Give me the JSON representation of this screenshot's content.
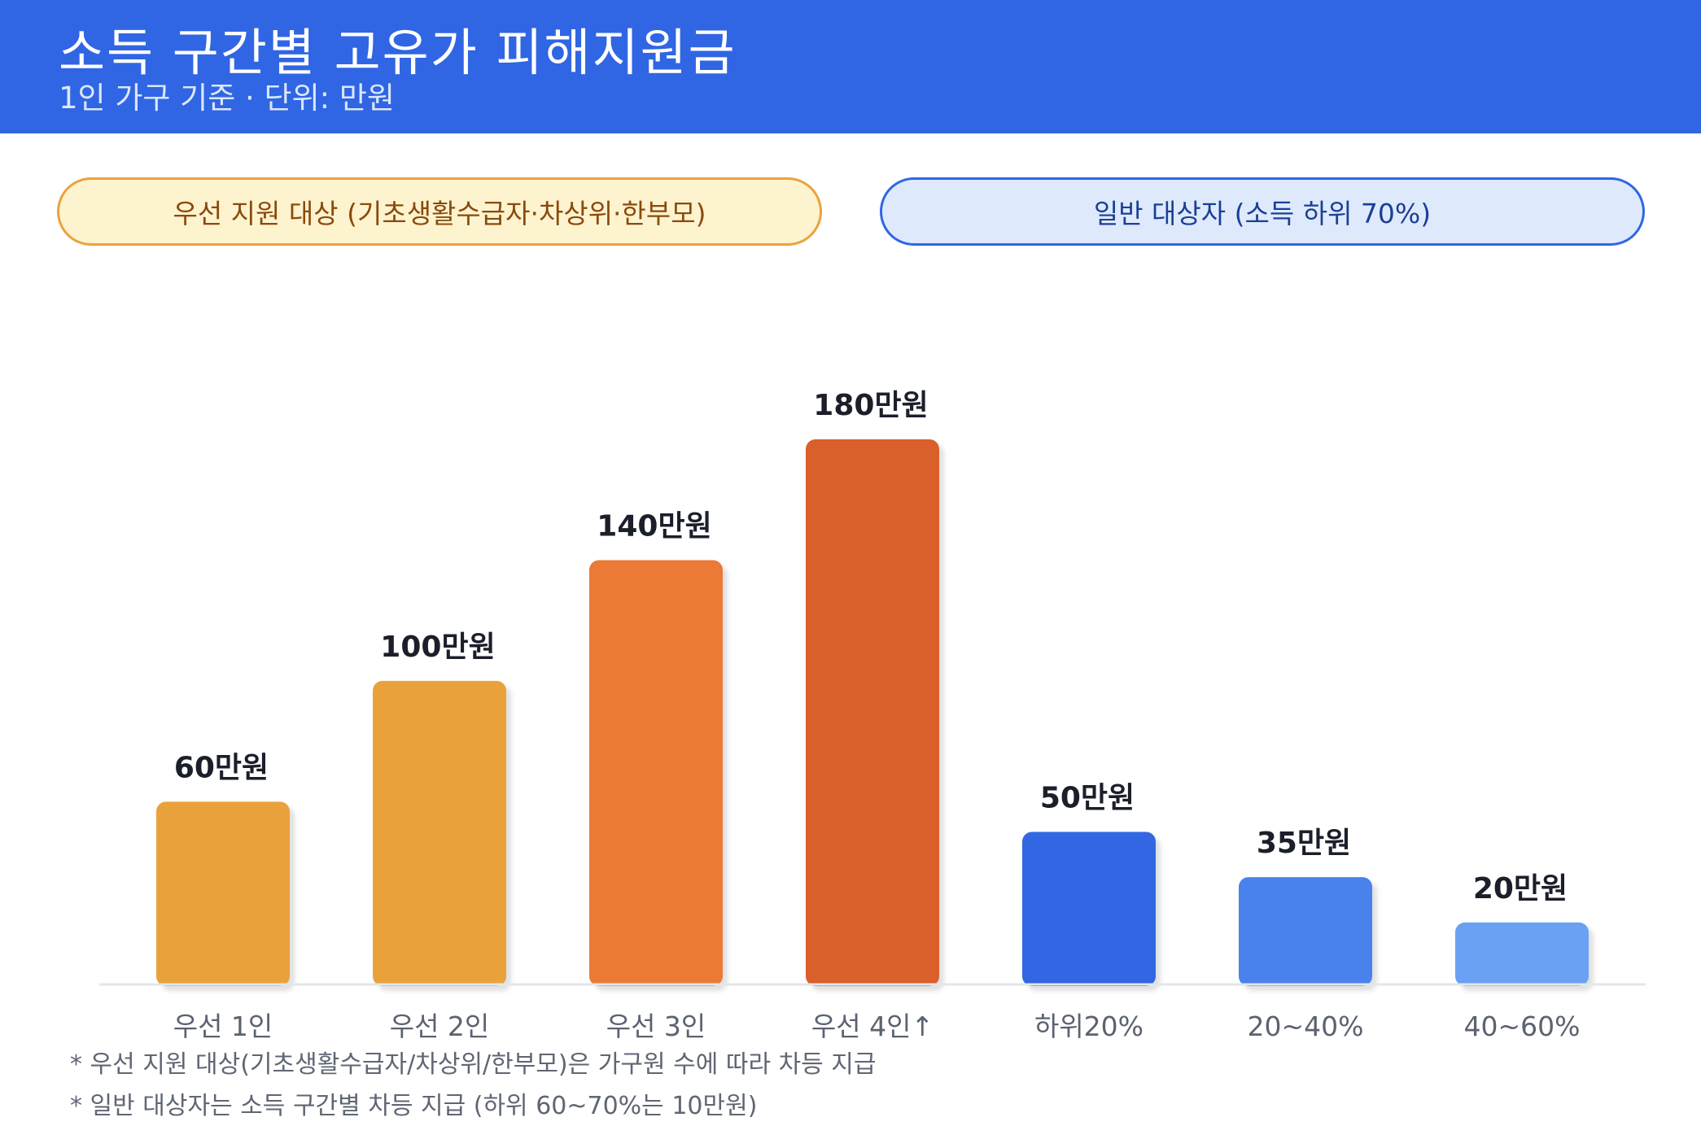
{
  "header": {
    "title": "소득 구간별 고유가 피해지원금",
    "subtitle": "1인 가구 기준 · 단위: 만원"
  },
  "legend": {
    "priority": "우선 지원 대상 (기초생활수급자·차상위·한부모)",
    "general": "일반 대상자 (소득 하위 70%)"
  },
  "notes": [
    "* 우선 지원 대상(기초생활수급자/차상위/한부모)은 가구원 수에 따라 차등 지급",
    "* 일반 대상자는 소득 구간별 차등 지급 (하위 60~70%는 10만원)"
  ],
  "colors": {
    "header_bg": "#3066e3",
    "priority_accent": "#e9a33c",
    "general_accent": "#3066e3"
  },
  "chart_data": {
    "type": "bar",
    "categories": [
      "우선 1인",
      "우선 2인",
      "우선 3인",
      "우선 4인↑",
      "하위20%",
      "20~40%",
      "40~60%"
    ],
    "values": [
      60,
      100,
      140,
      180,
      50,
      35,
      20
    ],
    "value_labels": [
      "60만원",
      "100만원",
      "140만원",
      "180만원",
      "50만원",
      "35만원",
      "20만원"
    ],
    "bar_colors": [
      "#e9a23b",
      "#e9a23b",
      "#ea7a35",
      "#d9602b",
      "#3066e3",
      "#4a82ec",
      "#6aa1f3"
    ],
    "ylim": [
      0,
      180
    ],
    "grid": false,
    "legend_position": "top"
  }
}
